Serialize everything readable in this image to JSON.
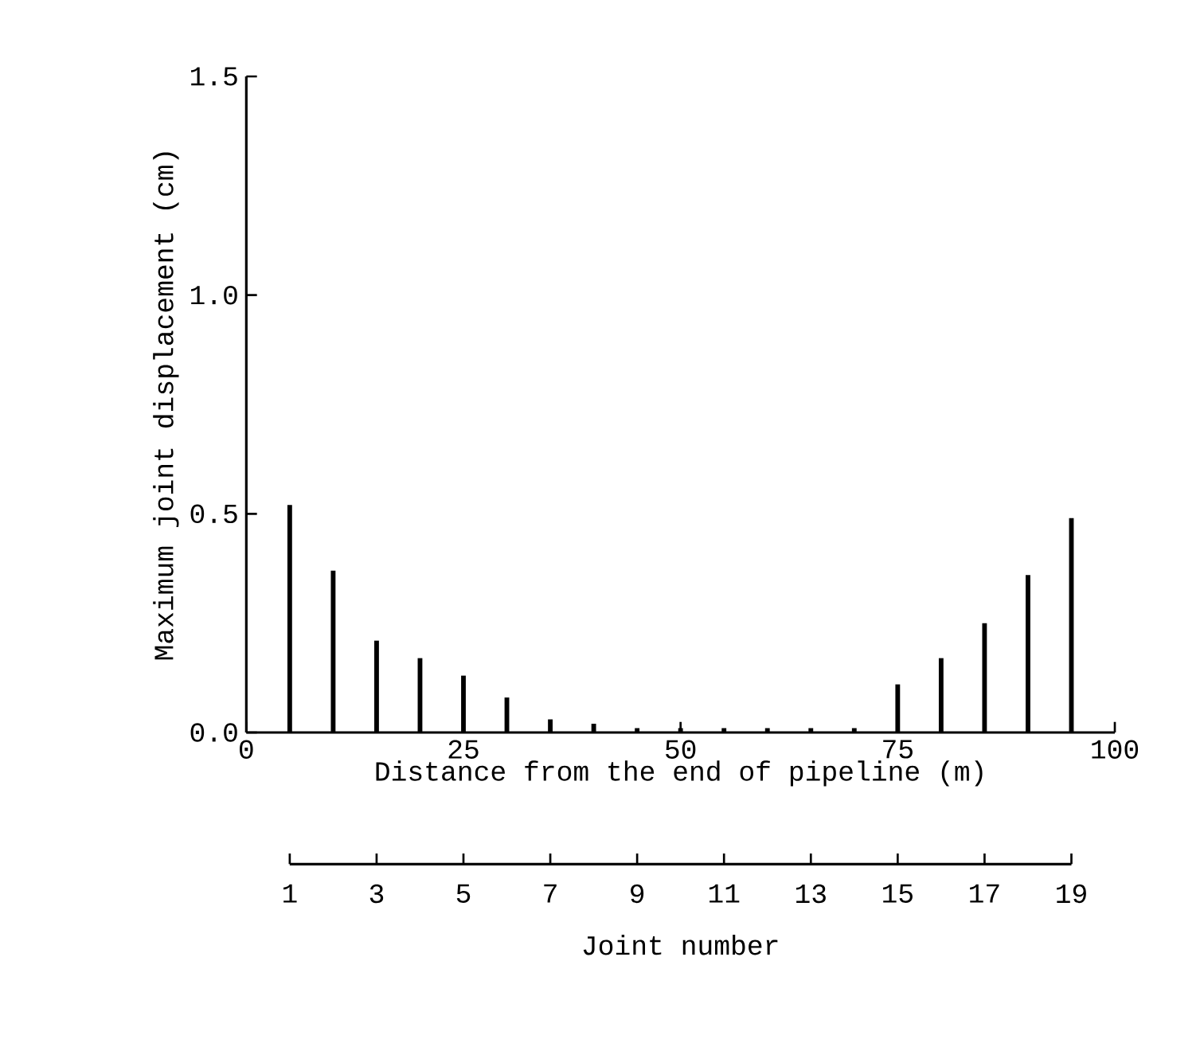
{
  "chart_data": {
    "type": "bar",
    "xlabel": "Distance from the end of pipeline (m)",
    "ylabel": "Maximum joint displacement (cm)",
    "x2label": "Joint number",
    "x": [
      5,
      10,
      15,
      20,
      25,
      30,
      35,
      40,
      45,
      50,
      55,
      60,
      65,
      70,
      75,
      80,
      85,
      90,
      95
    ],
    "values": [
      0.52,
      0.37,
      0.21,
      0.17,
      0.13,
      0.08,
      0.03,
      0.02,
      0.01,
      0.01,
      0.01,
      0.01,
      0.01,
      0.01,
      0.11,
      0.17,
      0.25,
      0.36,
      0.49
    ],
    "color": "#000000",
    "xlim": [
      0,
      100
    ],
    "xticks": [
      0,
      25,
      50,
      75,
      100
    ],
    "ylim": [
      0,
      1.5
    ],
    "yticks": [
      {
        "value": 0,
        "label": "0.0"
      },
      {
        "value": 0.5,
        "label": "0.5"
      },
      {
        "value": 1.0,
        "label": "1.0"
      },
      {
        "value": 1.5,
        "label": "1.5"
      }
    ],
    "x2lim": [
      0,
      20
    ],
    "x2ticks": [
      1,
      3,
      5,
      7,
      9,
      11,
      13,
      15,
      17,
      19
    ]
  }
}
